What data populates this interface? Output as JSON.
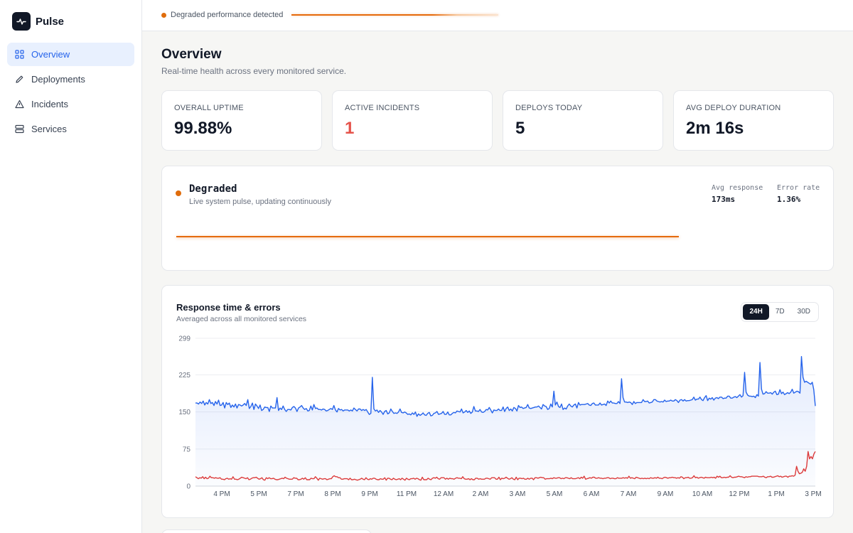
{
  "app": {
    "name": "Pulse"
  },
  "sidebar": {
    "items": [
      {
        "label": "Overview",
        "icon": "grid-icon",
        "active": true
      },
      {
        "label": "Deployments",
        "icon": "pencil-icon",
        "active": false
      },
      {
        "label": "Incidents",
        "icon": "alert-triangle-icon",
        "active": false
      },
      {
        "label": "Services",
        "icon": "server-icon",
        "active": false
      }
    ]
  },
  "banner": {
    "text": "Degraded performance detected",
    "color": "#e06c0b"
  },
  "page": {
    "title": "Overview",
    "subtitle": "Real-time health across every monitored service."
  },
  "stats": [
    {
      "label": "OVERALL UPTIME",
      "value": "99.88%"
    },
    {
      "label": "ACTIVE INCIDENTS",
      "value": "1"
    },
    {
      "label": "DEPLOYS TODAY",
      "value": "5"
    },
    {
      "label": "AVG DEPLOY DURATION",
      "value": "2m 16s"
    }
  ],
  "status": {
    "title": "Degraded",
    "subtitle": "Live system pulse, updating continuously",
    "color": "#e06c0b",
    "metrics": [
      {
        "label": "Avg response",
        "value": "173ms"
      },
      {
        "label": "Error rate",
        "value": "1.36%"
      }
    ]
  },
  "chart_panel": {
    "title": "Response time & errors",
    "subtitle": "Averaged across all monitored services",
    "ranges": [
      {
        "label": "24H",
        "active": true
      },
      {
        "label": "7D",
        "active": false
      },
      {
        "label": "30D",
        "active": false
      }
    ]
  },
  "chart_data": {
    "type": "line",
    "title": "Response time & errors",
    "xlabel": "",
    "ylabel": "",
    "ylim": [
      0,
      299
    ],
    "yticks": [
      0,
      75,
      150,
      225,
      299
    ],
    "x_tick_labels": [
      "4 PM",
      "5 PM",
      "7 PM",
      "8 PM",
      "9 PM",
      "11 PM",
      "12 AM",
      "2 AM",
      "3 AM",
      "5 AM",
      "6 AM",
      "7 AM",
      "9 AM",
      "10 AM",
      "12 PM",
      "1 PM",
      "3 PM"
    ],
    "grid": true,
    "series": [
      {
        "color": "#2563eb",
        "fill": true,
        "values": [
          168,
          168,
          166,
          170,
          167,
          172,
          164,
          169,
          166,
          175,
          167,
          169,
          163,
          171,
          166,
          174,
          163,
          164,
          169,
          158,
          169,
          165,
          168,
          159,
          164,
          160,
          166,
          158,
          165,
          164,
          162,
          164,
          167,
          163,
          175,
          157,
          161,
          168,
          155,
          166,
          162,
          157,
          164,
          153,
          155,
          160,
          159,
          159,
          151,
          162,
          158,
          158,
          158,
          179,
          153,
          158,
          155,
          162,
          155,
          151,
          155,
          155,
          154,
          159,
          161,
          158,
          151,
          158,
          160,
          163,
          158,
          155,
          157,
          152,
          153,
          162,
          154,
          165,
          157,
          158,
          155,
          155,
          154,
          156,
          155,
          152,
          153,
          155,
          157,
          155,
          163,
          154,
          150,
          157,
          154,
          155,
          152,
          154,
          154,
          154,
          152,
          154,
          152,
          158,
          155,
          152,
          156,
          156,
          153,
          155,
          153,
          155,
          150,
          145,
          147,
          220,
          156,
          152,
          154,
          149,
          153,
          150,
          145,
          151,
          153,
          146,
          148,
          156,
          151,
          147,
          148,
          147,
          150,
          156,
          149,
          148,
          150,
          148,
          145,
          146,
          144,
          148,
          145,
          150,
          141,
          146,
          143,
          145,
          148,
          144,
          143,
          147,
          149,
          142,
          143,
          147,
          148,
          151,
          145,
          146,
          147,
          151,
          145,
          145,
          150,
          144,
          144,
          147,
          149,
          148,
          152,
          151,
          150,
          156,
          148,
          150,
          153,
          149,
          152,
          147,
          150,
          161,
          152,
          152,
          151,
          155,
          150,
          149,
          151,
          155,
          154,
          159,
          154,
          148,
          154,
          153,
          153,
          156,
          153,
          153,
          160,
          151,
          157,
          160,
          153,
          156,
          152,
          159,
          157,
          152,
          163,
          159,
          160,
          157,
          158,
          159,
          165,
          158,
          157,
          158,
          159,
          160,
          160,
          162,
          159,
          156,
          165,
          162,
          161,
          155,
          157,
          166,
          160,
          192,
          164,
          170,
          161,
          159,
          166,
          155,
          158,
          156,
          162,
          166,
          162,
          160,
          164,
          166,
          158,
          169,
          164,
          165,
          165,
          165,
          166,
          167,
          164,
          163,
          167,
          168,
          164,
          164,
          164,
          168,
          164,
          165,
          166,
          163,
          172,
          168,
          172,
          168,
          168,
          167,
          167,
          171,
          167,
          217,
          179,
          170,
          170,
          169,
          170,
          169,
          165,
          171,
          167,
          169,
          169,
          169,
          169,
          175,
          171,
          171,
          172,
          168,
          169,
          170,
          175,
          175,
          172,
          171,
          170,
          171,
          170,
          174,
          171,
          172,
          172,
          174,
          172,
          172,
          175,
          173,
          169,
          174,
          175,
          172,
          175,
          172,
          173,
          173,
          174,
          175,
          180,
          174,
          176,
          176,
          180,
          175,
          173,
          179,
          183,
          173,
          178,
          176,
          179,
          174,
          178,
          179,
          177,
          180,
          180,
          177,
          178,
          178,
          182,
          182,
          178,
          178,
          180,
          181,
          179,
          182,
          185,
          180,
          183,
          230,
          190,
          184,
          182,
          182,
          181,
          182,
          179,
          185,
          182,
          250,
          196,
          186,
          187,
          191,
          188,
          188,
          189,
          186,
          190,
          192,
          185,
          186,
          195,
          187,
          190,
          185,
          187,
          189,
          187,
          190,
          196,
          188,
          190,
          192,
          191,
          188,
          262,
          220,
          210,
          212,
          210,
          208,
          206,
          210,
          195,
          162
        ]
      },
      {
        "color": "#dc3b3b",
        "fill": false,
        "values": [
          19,
          17,
          15,
          17,
          16,
          19,
          15,
          18,
          15,
          16,
          20,
          17,
          17,
          16,
          17,
          16,
          16,
          17,
          14,
          14,
          13,
          15,
          16,
          14,
          15,
          14,
          19,
          14,
          14,
          13,
          14,
          16,
          18,
          17,
          16,
          15,
          17,
          13,
          14,
          16,
          17,
          17,
          18,
          16,
          14,
          15,
          17,
          13,
          12,
          17,
          15,
          17,
          15,
          15,
          16,
          14,
          13,
          13,
          14,
          15,
          16,
          15,
          18,
          16,
          15,
          14,
          14,
          14,
          17,
          16,
          16,
          13,
          13,
          14,
          16,
          14,
          17,
          13,
          13,
          13,
          16,
          15,
          15,
          19,
          16,
          12,
          16,
          15,
          14,
          15,
          15,
          13,
          14,
          15,
          15,
          19,
          21,
          19,
          19,
          17,
          17,
          14,
          14,
          15,
          15,
          15,
          13,
          16,
          13,
          13,
          14,
          13,
          12,
          13,
          14,
          16,
          14,
          13,
          17,
          14,
          13,
          15,
          14,
          16,
          16,
          14,
          13,
          13,
          15,
          14,
          14,
          17,
          12,
          16,
          16,
          14,
          13,
          16,
          14,
          13,
          14,
          15,
          13,
          16,
          14,
          12,
          16,
          14,
          13,
          15,
          15,
          16,
          14,
          16,
          15,
          13,
          12,
          18,
          13,
          13,
          13,
          16,
          14,
          13,
          16,
          17,
          16,
          18,
          15,
          14,
          17,
          17,
          17,
          14,
          16,
          14,
          16,
          15,
          15,
          14,
          16,
          17,
          16,
          16,
          15,
          19,
          15,
          14,
          14,
          15,
          13,
          15,
          13,
          13,
          16,
          16,
          14,
          15,
          14,
          14,
          14,
          16,
          16,
          15,
          14,
          17,
          17,
          17,
          14,
          14,
          18,
          13,
          16,
          15,
          16,
          18,
          16,
          14,
          15,
          17,
          14,
          13,
          18,
          13,
          16,
          16,
          15,
          16,
          14,
          14,
          16,
          14,
          16,
          16,
          13,
          17,
          17,
          16,
          17,
          18,
          17,
          17,
          14,
          15,
          15,
          15,
          16,
          15,
          17,
          16,
          16,
          17,
          17,
          15,
          16,
          15,
          17,
          17,
          16,
          15,
          17,
          15,
          15,
          15,
          16,
          17,
          15,
          18,
          16,
          20,
          14,
          15,
          16,
          17,
          16,
          18,
          18,
          16,
          16,
          17,
          16,
          16,
          15,
          16,
          16,
          17,
          17,
          15,
          16,
          16,
          15,
          15,
          17,
          16,
          16,
          16,
          17,
          16,
          17,
          16,
          20,
          16,
          17,
          16,
          15,
          18,
          17,
          16,
          15,
          16,
          15,
          16,
          15,
          16,
          15,
          17,
          16,
          16,
          17,
          16,
          18,
          16,
          16,
          15,
          17,
          18,
          17,
          16,
          17,
          17,
          18,
          17,
          17,
          16,
          17,
          16,
          19,
          18,
          15,
          17,
          17,
          18,
          16,
          16,
          17,
          21,
          17,
          18,
          16,
          17,
          18,
          17,
          16,
          18,
          17,
          17,
          17,
          18,
          17,
          18,
          16,
          20,
          18,
          20,
          17,
          17,
          18,
          17,
          18,
          18,
          21,
          18,
          17,
          18,
          18,
          19,
          20,
          19,
          19,
          18,
          17,
          19,
          18,
          19,
          19,
          20,
          20,
          20,
          20,
          20,
          19,
          19,
          19,
          20,
          18,
          17,
          19,
          19,
          20,
          18,
          18,
          19,
          20,
          21,
          19,
          20,
          18,
          19,
          20,
          20,
          18,
          20,
          20,
          21,
          20,
          22,
          40,
          30,
          25,
          26,
          28,
          35,
          30,
          40,
          70,
          55,
          60,
          55,
          65,
          70
        ]
      }
    ]
  }
}
